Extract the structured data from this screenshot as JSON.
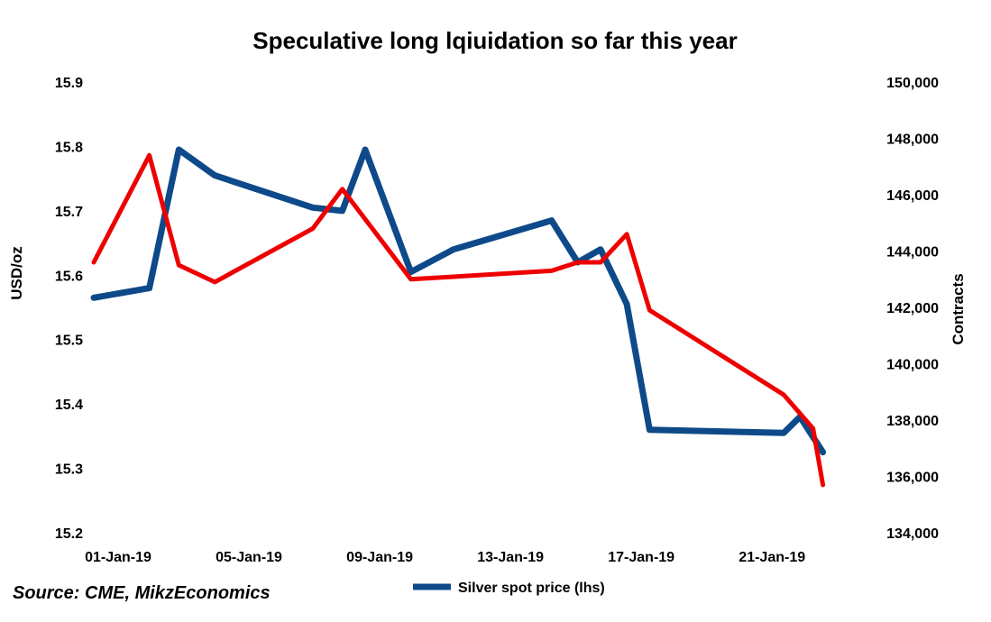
{
  "chart_data": {
    "type": "line",
    "title": "Speculative long lqiuidation so far this year",
    "ylabel_left": "USD/oz",
    "ylabel_right": "Contracts",
    "source": "Source: CME, MikzEconomics",
    "x_range": [
      0,
      23
    ],
    "x_ticks": [
      {
        "x": 0,
        "label": "01-Jan-19"
      },
      {
        "x": 4,
        "label": "05-Jan-19"
      },
      {
        "x": 8,
        "label": "09-Jan-19"
      },
      {
        "x": 12,
        "label": "13-Jan-19"
      },
      {
        "x": 16,
        "label": "17-Jan-19"
      },
      {
        "x": 20,
        "label": "21-Jan-19"
      }
    ],
    "ylim_left": [
      15.2,
      15.9
    ],
    "yticks_left": [
      "15.2",
      "15.3",
      "15.4",
      "15.5",
      "15.6",
      "15.7",
      "15.8",
      "15.9"
    ],
    "ylim_right": [
      134000,
      150000
    ],
    "yticks_right": [
      "134,000",
      "136,000",
      "138,000",
      "140,000",
      "142,000",
      "144,000",
      "146,000",
      "148,000",
      "150,000"
    ],
    "series": [
      {
        "name": "Silver spot price (lhs)",
        "axis": "left",
        "color": "#0E4A8A",
        "points": [
          [
            0,
            15.565
          ],
          [
            1.7,
            15.58
          ],
          [
            2.6,
            15.795
          ],
          [
            3.7,
            15.755
          ],
          [
            6.7,
            15.705
          ],
          [
            7.6,
            15.7
          ],
          [
            8.3,
            15.795
          ],
          [
            9.7,
            15.605
          ],
          [
            11.0,
            15.64
          ],
          [
            14.0,
            15.685
          ],
          [
            14.8,
            15.62
          ],
          [
            15.5,
            15.64
          ],
          [
            16.3,
            15.555
          ],
          [
            17.0,
            15.36
          ],
          [
            21.1,
            15.355
          ],
          [
            21.6,
            15.38
          ],
          [
            22.3,
            15.325
          ]
        ]
      },
      {
        "axis": "right",
        "color": "#EE0000",
        "points": [
          [
            0,
            143600
          ],
          [
            1.7,
            147400
          ],
          [
            2.6,
            143500
          ],
          [
            3.7,
            142900
          ],
          [
            6.7,
            144800
          ],
          [
            7.6,
            146200
          ],
          [
            9.7,
            143000
          ],
          [
            14.0,
            143300
          ],
          [
            14.8,
            143600
          ],
          [
            15.5,
            143600
          ],
          [
            16.3,
            144600
          ],
          [
            17.0,
            141900
          ],
          [
            21.1,
            138900
          ],
          [
            22.0,
            137700
          ],
          [
            22.3,
            135700
          ]
        ]
      }
    ],
    "legend": {
      "position": "bottom",
      "entries": [
        "Silver spot price (lhs)"
      ]
    }
  }
}
